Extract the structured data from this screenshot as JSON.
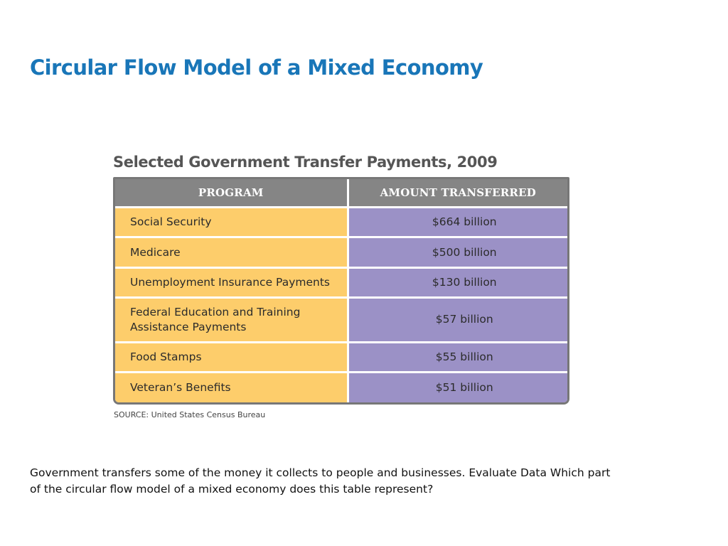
{
  "slide": {
    "title": "Circular Flow Model of a Mixed Economy",
    "body_text": "Government transfers some of the money it collects to people and businesses. Evaluate Data Which part of the circular flow model of a mixed economy does this table represent?"
  },
  "table": {
    "caption": "Selected Government Transfer Payments, 2009",
    "headers": {
      "program": "PROGRAM",
      "amount": "AMOUNT TRANSFERRED"
    },
    "rows": [
      {
        "program": "Social Security",
        "amount": "$664 billion"
      },
      {
        "program": "Medicare",
        "amount": "$500 billion"
      },
      {
        "program": "Unemployment Insurance Payments",
        "amount": "$130 billion"
      },
      {
        "program": "Federal Education and Training Assistance Payments",
        "amount": "$57 billion"
      },
      {
        "program": "Food Stamps",
        "amount": "$55 billion"
      },
      {
        "program": "Veteran’s Benefits",
        "amount": "$51 billion"
      }
    ],
    "source": "SOURCE: United States Census Bureau",
    "colors": {
      "header_bg": "#858585",
      "program_bg": "#fdcd6b",
      "amount_bg": "#9b91c6",
      "frame": "#777777"
    }
  },
  "colors": {
    "title": "#1976b8"
  }
}
